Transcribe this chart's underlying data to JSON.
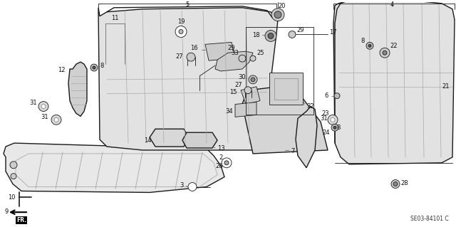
{
  "bg_color": "#ffffff",
  "diagram_code": "SE03-84101 C",
  "fig_width": 6.4,
  "fig_height": 3.19,
  "dpi": 100,
  "lc": "#1a1a1a",
  "lc_light": "#888888",
  "fc_seat": "#d8d8d8",
  "fc_light": "#ebebeb",
  "label_fs": 6.0,
  "label_color": "#111111"
}
